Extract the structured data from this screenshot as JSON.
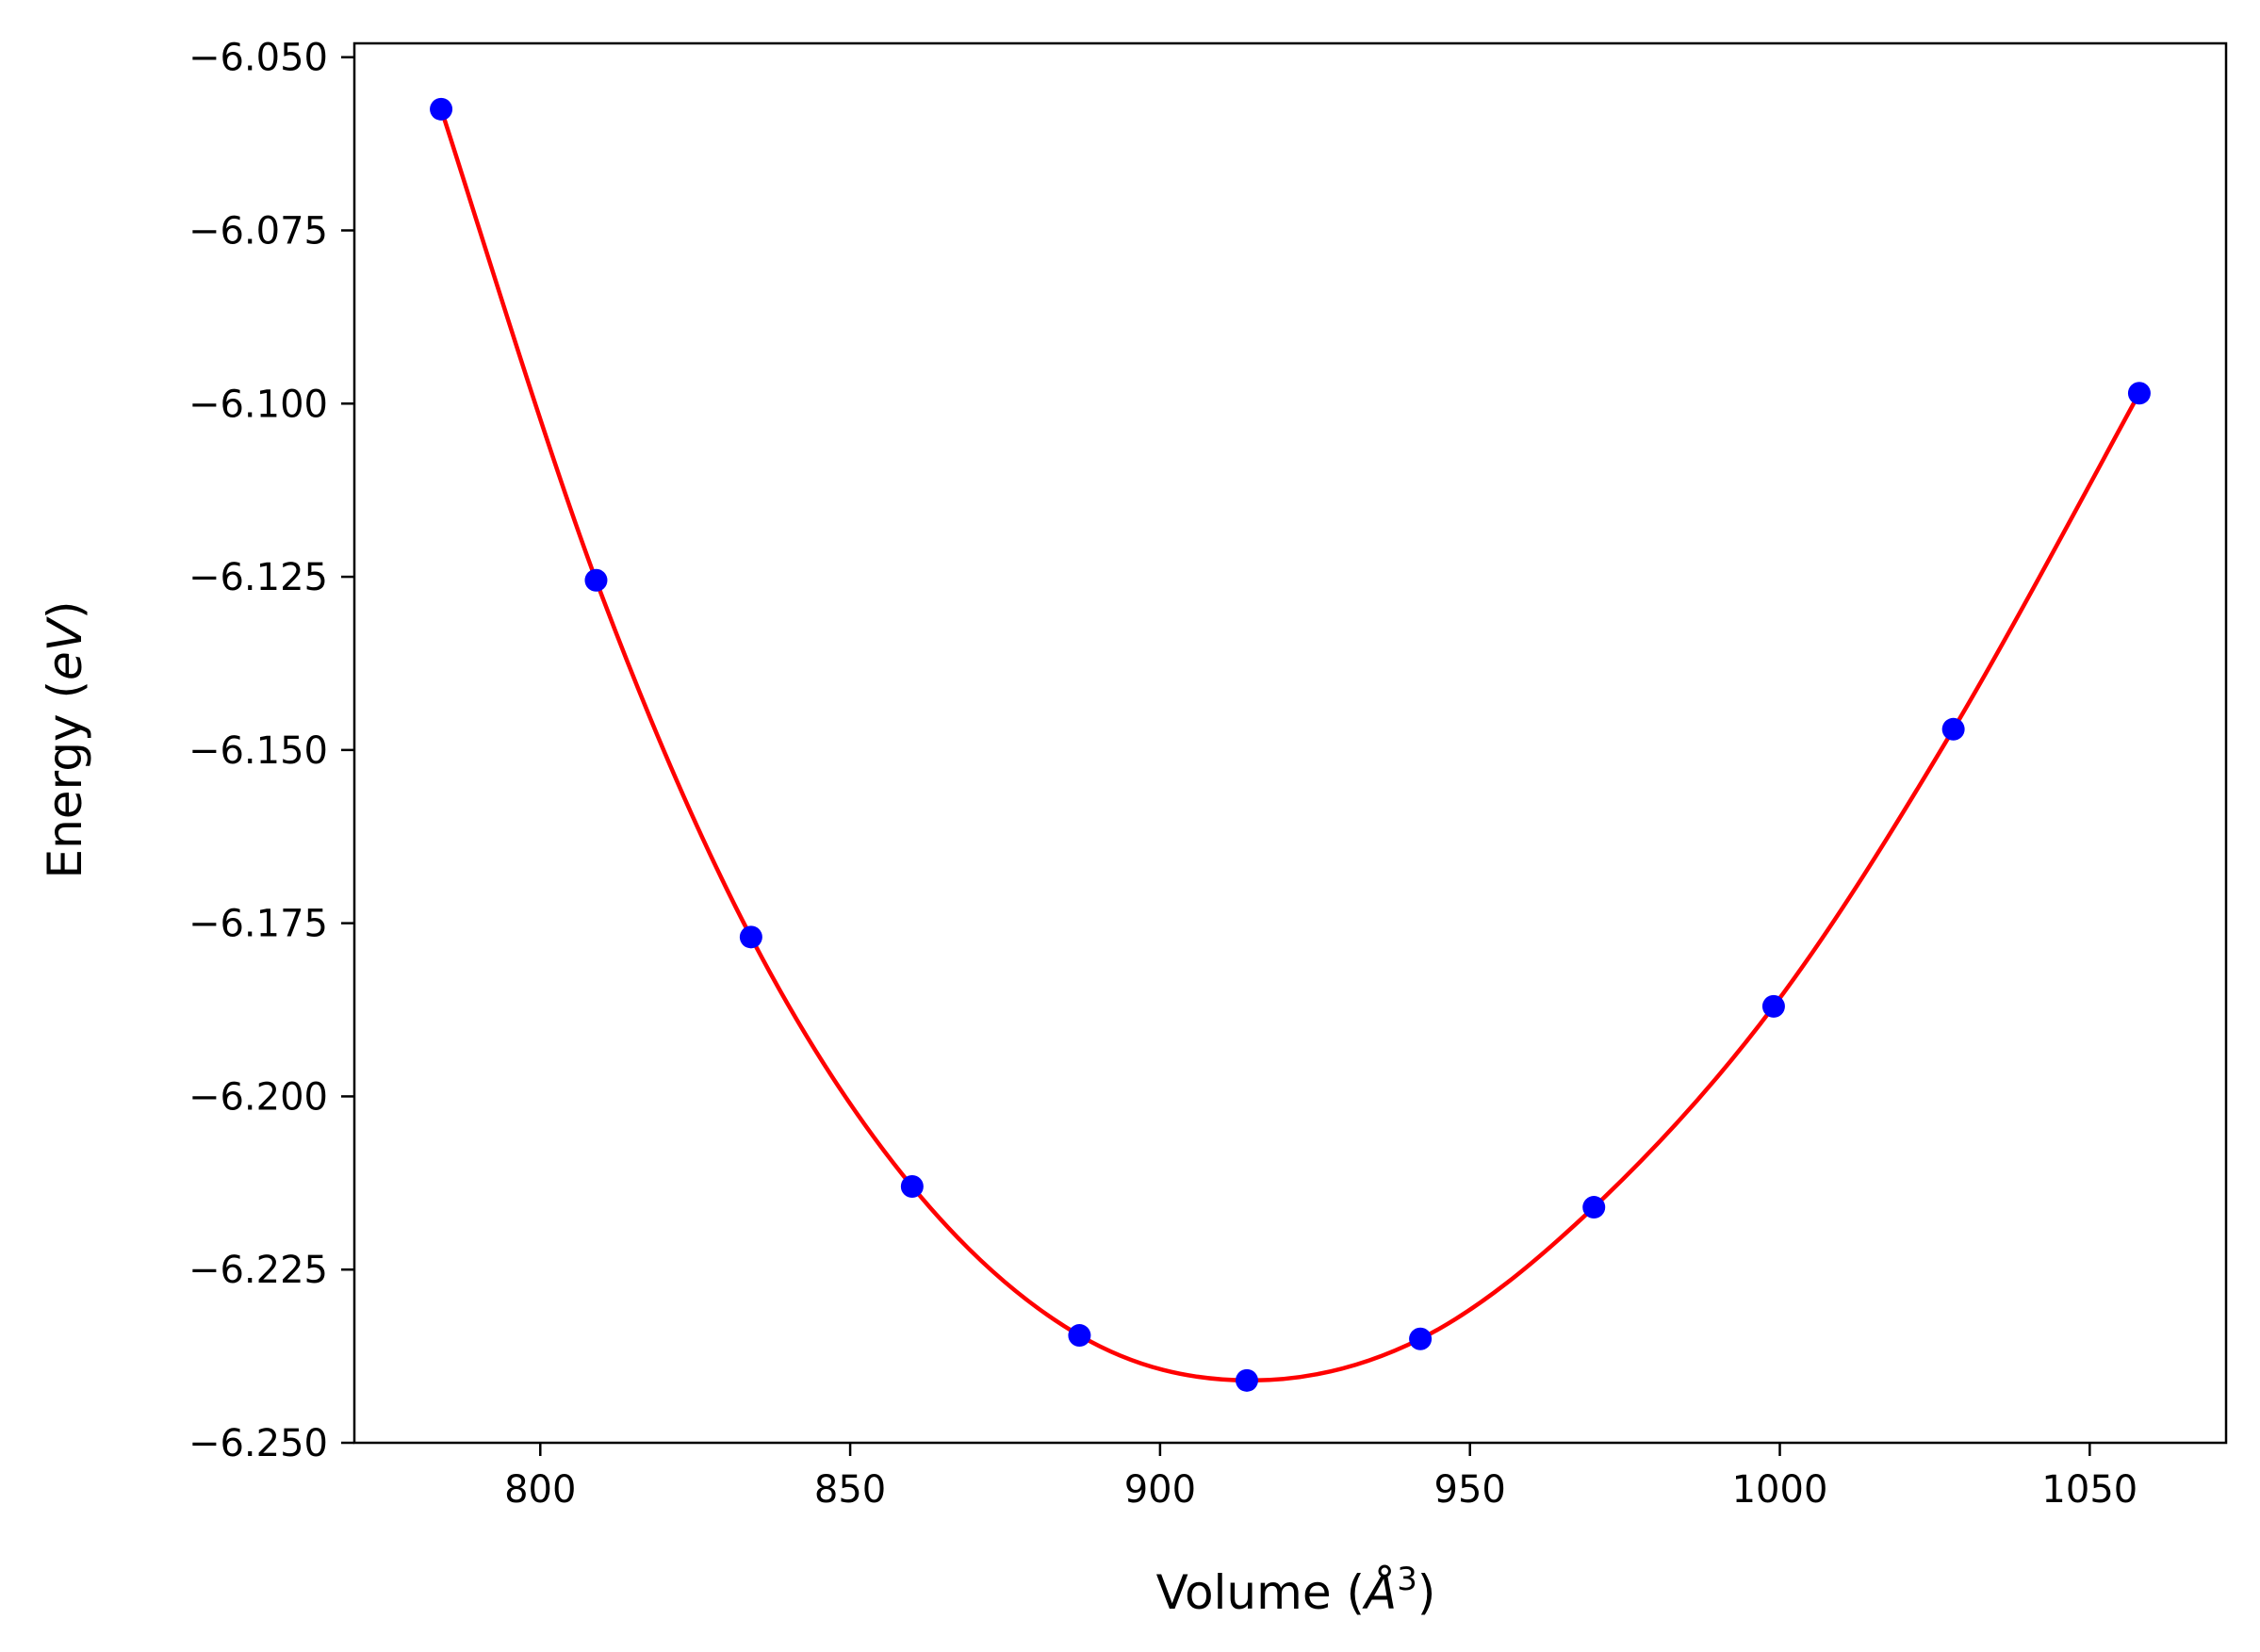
{
  "chart_data": {
    "type": "scatter",
    "title": "",
    "xlabel_text": "Volume (",
    "xlabel_unit": "Å",
    "xlabel_sup": "3",
    "xlabel_close": ")",
    "ylabel_text": "Energy (",
    "ylabel_unit": "eV",
    "ylabel_close": ")",
    "xlim": [
      770,
      1072
    ],
    "ylim": [
      -6.25,
      -6.048
    ],
    "xticks": [
      800,
      850,
      900,
      950,
      1000,
      1050
    ],
    "xtick_labels": [
      "800",
      "850",
      "900",
      "950",
      "1000",
      "1050"
    ],
    "yticks": [
      -6.05,
      -6.075,
      -6.1,
      -6.125,
      -6.15,
      -6.175,
      -6.2,
      -6.225,
      -6.25
    ],
    "ytick_labels": [
      "−6.050",
      "−6.075",
      "−6.100",
      "−6.125",
      "−6.150",
      "−6.175",
      "−6.200",
      "−6.225",
      "−6.250"
    ],
    "grid": false,
    "series": [
      {
        "type": "scatter",
        "color": "#0000ff",
        "points": [
          {
            "x": 784,
            "y": -6.0575
          },
          {
            "x": 809,
            "y": -6.1255
          },
          {
            "x": 834,
            "y": -6.177
          },
          {
            "x": 860,
            "y": -6.213
          },
          {
            "x": 887,
            "y": -6.2345
          },
          {
            "x": 914,
            "y": -6.241
          },
          {
            "x": 942,
            "y": -6.235
          },
          {
            "x": 970,
            "y": -6.216
          },
          {
            "x": 999,
            "y": -6.187
          },
          {
            "x": 1028,
            "y": -6.147
          },
          {
            "x": 1058,
            "y": -6.0985
          }
        ]
      },
      {
        "type": "line",
        "color": "#ff0000",
        "fit": "smooth curve through points"
      }
    ]
  }
}
